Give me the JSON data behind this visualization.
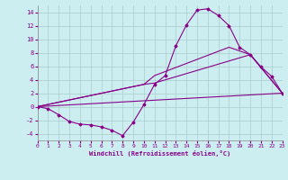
{
  "xlabel": "Windchill (Refroidissement éolien,°C)",
  "bg_color": "#cceef0",
  "grid_color": "#aacccc",
  "line_color": "#880088",
  "xlim": [
    0,
    23
  ],
  "ylim": [
    -5,
    15
  ],
  "yticks": [
    -4,
    -2,
    0,
    2,
    4,
    6,
    8,
    10,
    12,
    14
  ],
  "xticks": [
    0,
    1,
    2,
    3,
    4,
    5,
    6,
    7,
    8,
    9,
    10,
    11,
    12,
    13,
    14,
    15,
    16,
    17,
    18,
    19,
    20,
    21,
    22,
    23
  ],
  "line1_x": [
    0,
    1,
    2,
    3,
    4,
    5,
    6,
    7,
    8,
    9,
    10,
    11,
    12,
    13,
    14,
    15,
    16,
    17,
    18,
    19,
    20,
    21,
    22,
    23
  ],
  "line1_y": [
    0,
    -0.3,
    -1.2,
    -2.2,
    -2.6,
    -2.7,
    -3.0,
    -3.5,
    -4.3,
    -2.3,
    0.3,
    3.3,
    4.6,
    9.0,
    12.1,
    14.3,
    14.5,
    13.5,
    12.0,
    8.8,
    7.7,
    5.9,
    4.5,
    2.0
  ],
  "line2_x": [
    0,
    23
  ],
  "line2_y": [
    0,
    2.0
  ],
  "line3_x": [
    0,
    10,
    11,
    20,
    23
  ],
  "line3_y": [
    0,
    3.3,
    3.5,
    7.7,
    2.0
  ],
  "line4_x": [
    0,
    10,
    11,
    18,
    20,
    23
  ],
  "line4_y": [
    0,
    3.3,
    4.6,
    8.8,
    7.7,
    2.0
  ]
}
